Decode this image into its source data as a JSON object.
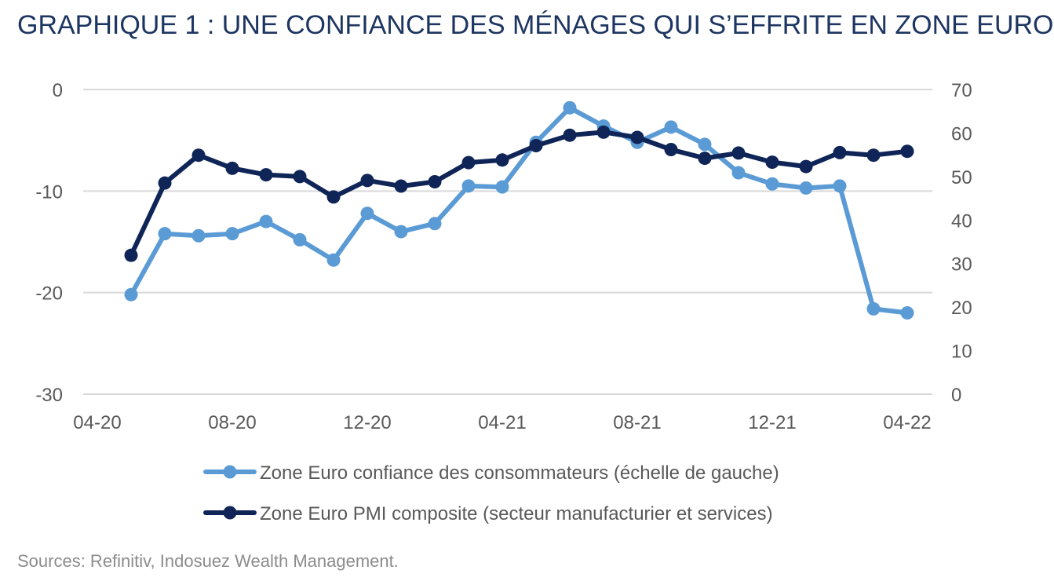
{
  "page": {
    "title": "GRAPHIQUE 1 : UNE CONFIANCE DES MÉNAGES QUI S’EFFRITE EN ZONE EURO",
    "source": "Sources: Refinitiv, Indosuez Wealth Management."
  },
  "chart_data": {
    "type": "line",
    "title": "GRAPHIQUE 1 : UNE CONFIANCE DES MÉNAGES QUI S’EFFRITE EN ZONE EURO",
    "x_tick_labels": [
      "04-20",
      "08-20",
      "12-20",
      "04-21",
      "08-21",
      "12-21",
      "04-22"
    ],
    "x_tick_indices": [
      0,
      4,
      8,
      12,
      16,
      20,
      24
    ],
    "x": [
      "05-20",
      "06-20",
      "07-20",
      "08-20",
      "09-20",
      "10-20",
      "11-20",
      "12-20",
      "01-21",
      "02-21",
      "03-21",
      "04-21",
      "05-21",
      "06-21",
      "07-21",
      "08-21",
      "09-21",
      "10-21",
      "11-21",
      "12-21",
      "01-22",
      "02-22",
      "03-22",
      "04-22"
    ],
    "x_axis_range": [
      "04-20",
      "04-22"
    ],
    "y_left": {
      "ylim": [
        -30,
        0
      ],
      "ticks": [
        0,
        -10,
        -20,
        -30
      ],
      "tick_labels": [
        "0",
        "-10",
        "-20",
        "-30"
      ]
    },
    "y_right": {
      "ylim": [
        0,
        70
      ],
      "ticks": [
        70,
        60,
        50,
        40,
        30,
        20,
        10,
        0
      ],
      "tick_labels": [
        "70",
        "60",
        "50",
        "40",
        "30",
        "20",
        "10",
        "0"
      ]
    },
    "grid": true,
    "legend_position": "bottom",
    "series": [
      {
        "name": "Zone Euro confiance des consommateurs (échelle de gauche)",
        "axis": "left",
        "color": "#5b9bd5",
        "values": [
          -20.2,
          -14.2,
          -14.4,
          -14.2,
          -13.0,
          -14.8,
          -16.8,
          -12.2,
          -14.0,
          -13.2,
          -9.5,
          -9.6,
          -5.2,
          -1.8,
          -3.6,
          -5.2,
          -3.7,
          -5.4,
          -8.2,
          -9.3,
          -9.7,
          -9.5,
          -21.6,
          -22.0
        ]
      },
      {
        "name": "Zone Euro PMI composite (secteur manufacturier et services)",
        "axis": "right",
        "color": "#0f2557",
        "values": [
          31.9,
          48.5,
          54.9,
          51.9,
          50.4,
          50.0,
          45.3,
          49.1,
          47.8,
          48.8,
          53.2,
          53.8,
          57.1,
          59.5,
          60.2,
          59.0,
          56.2,
          54.2,
          55.4,
          53.3,
          52.3,
          55.5,
          54.9,
          55.8
        ]
      }
    ]
  }
}
